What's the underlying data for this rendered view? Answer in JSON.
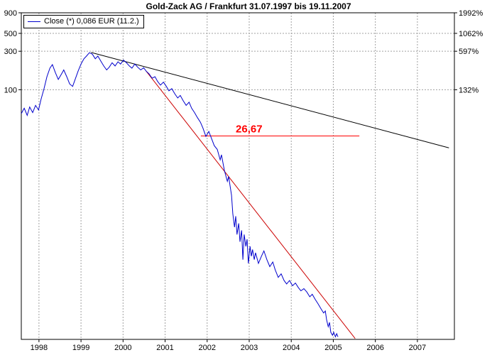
{
  "title": "Gold-Zack AG / Frankfurt 31.07.1997 bis 19.11.2007",
  "legend": {
    "series_label": "Close (*) 0,086 EUR (11.2.)"
  },
  "colors": {
    "price": "#0000cc",
    "trend_black": "#000000",
    "trend_red": "#cc0000",
    "hline_red": "#ff0000",
    "grid": "#a0a0a0",
    "axis": "#000000",
    "background": "#ffffff"
  },
  "chart_data": {
    "type": "line",
    "title": "Gold-Zack AG / Frankfurt 31.07.1997 bis 19.11.2007",
    "y_scale": "log",
    "y_unit": "EUR",
    "x_range": [
      1997.58,
      2007.88
    ],
    "y_range": {
      "top": 900,
      "bottom": 0.08
    },
    "grid": "dashed",
    "x_axis": {
      "ticks": [
        {
          "label": "1998",
          "value": 1998
        },
        {
          "label": "1999",
          "value": 1999
        },
        {
          "label": "2000",
          "value": 2000
        },
        {
          "label": "2001",
          "value": 2001
        },
        {
          "label": "2002",
          "value": 2002
        },
        {
          "label": "2003",
          "value": 2003
        },
        {
          "label": "2004",
          "value": 2004
        },
        {
          "label": "2005",
          "value": 2005
        },
        {
          "label": "2006",
          "value": 2006
        },
        {
          "label": "2007",
          "value": 2007
        }
      ]
    },
    "y_axis_left": {
      "ticks": [
        {
          "label": "900",
          "value": 900
        },
        {
          "label": "500",
          "value": 500
        },
        {
          "label": "300",
          "value": 300
        },
        {
          "label": "100",
          "value": 100
        }
      ]
    },
    "y_axis_right": {
      "ticks": [
        {
          "label": "1992%",
          "value": 900
        },
        {
          "label": "1062%",
          "value": 500
        },
        {
          "label": "597%",
          "value": 300
        },
        {
          "label": "132%",
          "value": 100
        }
      ]
    },
    "series": [
      {
        "name": "Close",
        "color_key": "price",
        "points": [
          [
            1997.58,
            50.5
          ],
          [
            1997.65,
            59
          ],
          [
            1997.72,
            48
          ],
          [
            1997.78,
            61
          ],
          [
            1997.85,
            52
          ],
          [
            1997.92,
            64
          ],
          [
            1997.99,
            56
          ],
          [
            1998.05,
            76
          ],
          [
            1998.12,
            103
          ],
          [
            1998.19,
            145
          ],
          [
            1998.26,
            185
          ],
          [
            1998.32,
            205
          ],
          [
            1998.39,
            163
          ],
          [
            1998.46,
            134
          ],
          [
            1998.53,
            155
          ],
          [
            1998.59,
            176
          ],
          [
            1998.66,
            145
          ],
          [
            1998.73,
            118
          ],
          [
            1998.8,
            110
          ],
          [
            1998.86,
            134
          ],
          [
            1998.93,
            170
          ],
          [
            1999.0,
            208
          ],
          [
            1999.07,
            242
          ],
          [
            1999.13,
            261
          ],
          [
            1999.2,
            288
          ],
          [
            1999.27,
            276
          ],
          [
            1999.34,
            242
          ],
          [
            1999.4,
            261
          ],
          [
            1999.47,
            227
          ],
          [
            1999.54,
            197
          ],
          [
            1999.61,
            176
          ],
          [
            1999.67,
            190
          ],
          [
            1999.74,
            216
          ],
          [
            1999.81,
            197
          ],
          [
            1999.88,
            222
          ],
          [
            1999.94,
            208
          ],
          [
            2000.01,
            233
          ],
          [
            2000.08,
            216
          ],
          [
            2000.15,
            197
          ],
          [
            2000.21,
            185
          ],
          [
            2000.28,
            208
          ],
          [
            2000.35,
            190
          ],
          [
            2000.42,
            176
          ],
          [
            2000.49,
            187
          ],
          [
            2000.55,
            170
          ],
          [
            2000.62,
            157
          ],
          [
            2000.69,
            139
          ],
          [
            2000.76,
            145
          ],
          [
            2000.82,
            127
          ],
          [
            2000.89,
            114
          ],
          [
            2000.96,
            124
          ],
          [
            2001.03,
            110
          ],
          [
            2001.09,
            97
          ],
          [
            2001.16,
            103
          ],
          [
            2001.23,
            89
          ],
          [
            2001.3,
            79
          ],
          [
            2001.36,
            85
          ],
          [
            2001.43,
            73
          ],
          [
            2001.5,
            64
          ],
          [
            2001.57,
            70
          ],
          [
            2001.63,
            59
          ],
          [
            2001.7,
            52
          ],
          [
            2001.77,
            45
          ],
          [
            2001.84,
            39.5
          ],
          [
            2001.9,
            33.5
          ],
          [
            2001.97,
            26.3
          ],
          [
            2002.04,
            30.4
          ],
          [
            2002.11,
            24.3
          ],
          [
            2002.17,
            20.2
          ],
          [
            2002.24,
            18.2
          ],
          [
            2002.31,
            13.5
          ],
          [
            2002.34,
            15.6
          ],
          [
            2002.41,
            10
          ],
          [
            2002.48,
            7.3
          ],
          [
            2002.51,
            8.4
          ],
          [
            2002.58,
            4.9
          ],
          [
            2002.61,
            2.9
          ],
          [
            2002.65,
            1.97
          ],
          [
            2002.68,
            2.7
          ],
          [
            2002.71,
            1.6
          ],
          [
            2002.75,
            2.2
          ],
          [
            2002.78,
            1.3
          ],
          [
            2002.82,
            1.8
          ],
          [
            2002.85,
            0.78
          ],
          [
            2002.88,
            1.6
          ],
          [
            2002.92,
            1.14
          ],
          [
            2002.95,
            1.4
          ],
          [
            2002.98,
            0.7
          ],
          [
            2003.02,
            1.14
          ],
          [
            2003.05,
            0.86
          ],
          [
            2003.08,
            1.04
          ],
          [
            2003.12,
            0.78
          ],
          [
            2003.15,
            0.95
          ],
          [
            2003.22,
            0.7
          ],
          [
            2003.29,
            0.86
          ],
          [
            2003.35,
            1.0
          ],
          [
            2003.42,
            0.78
          ],
          [
            2003.49,
            0.64
          ],
          [
            2003.56,
            0.73
          ],
          [
            2003.62,
            0.58
          ],
          [
            2003.69,
            0.47
          ],
          [
            2003.76,
            0.52
          ],
          [
            2003.83,
            0.43
          ],
          [
            2003.89,
            0.39
          ],
          [
            2003.96,
            0.43
          ],
          [
            2004.03,
            0.37
          ],
          [
            2004.1,
            0.4
          ],
          [
            2004.17,
            0.35
          ],
          [
            2004.23,
            0.32
          ],
          [
            2004.3,
            0.34
          ],
          [
            2004.37,
            0.31
          ],
          [
            2004.44,
            0.27
          ],
          [
            2004.5,
            0.29
          ],
          [
            2004.57,
            0.25
          ],
          [
            2004.64,
            0.22
          ],
          [
            2004.71,
            0.19
          ],
          [
            2004.77,
            0.17
          ],
          [
            2004.81,
            0.18
          ],
          [
            2004.84,
            0.14
          ],
          [
            2004.88,
            0.115
          ],
          [
            2004.91,
            0.13
          ],
          [
            2004.94,
            0.098
          ],
          [
            2004.98,
            0.09
          ],
          [
            2005.01,
            0.098
          ],
          [
            2005.05,
            0.086
          ],
          [
            2005.08,
            0.094
          ],
          [
            2005.11,
            0.086
          ]
        ]
      }
    ],
    "trendlines": [
      {
        "name": "resistance",
        "color": "#000000",
        "from": [
          1999.24,
          290
        ],
        "to": [
          2007.75,
          19
        ]
      },
      {
        "name": "downtrend",
        "color": "#cc0000",
        "from": [
          2000.55,
          170
        ],
        "to": [
          2005.52,
          0.082
        ]
      }
    ],
    "hline": {
      "value": 26.67,
      "label": "26,67",
      "from_x": 2001.85,
      "to_x": 2005.62,
      "label_x": 2002.68
    }
  }
}
